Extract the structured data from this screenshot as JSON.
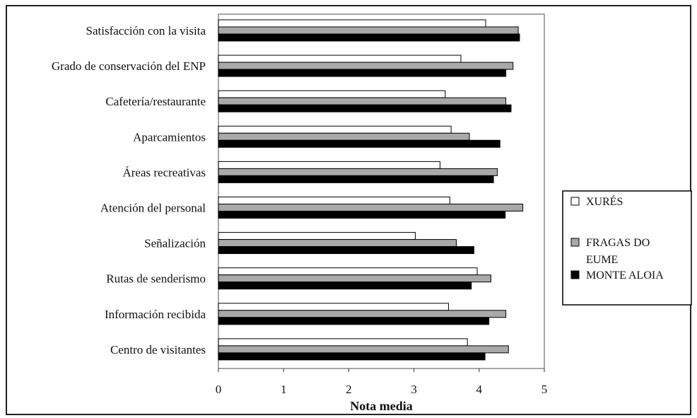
{
  "chart_data": {
    "type": "bar",
    "orientation": "horizontal",
    "categories": [
      "Satisfacción con la visita",
      "Grado de conservación del ENP",
      "Cafetería/restaurante",
      "Aparcamientos",
      "Áreas recreativas",
      "Atención del personal",
      "Señalización",
      "Rutas de senderismo",
      "Información recibida",
      "Centro de visitantes"
    ],
    "series": [
      {
        "name": "XURÉS",
        "color": "#ffffff",
        "values": [
          4.1,
          3.72,
          3.48,
          3.57,
          3.4,
          3.55,
          3.02,
          3.97,
          3.53,
          3.82
        ]
      },
      {
        "name": "FRAGAS DO EUME",
        "color": "#a9a9a9",
        "values": [
          4.6,
          4.52,
          4.41,
          3.85,
          4.28,
          4.67,
          3.65,
          4.18,
          4.41,
          4.45
        ]
      },
      {
        "name": "MONTE ALOIA",
        "color": "#000000",
        "values": [
          4.62,
          4.41,
          4.49,
          4.32,
          4.22,
          4.4,
          3.92,
          3.88,
          4.15,
          4.09
        ]
      }
    ],
    "xlabel": "Nota media",
    "xlim": [
      0,
      5
    ],
    "xticks": [
      "0",
      "1",
      "2",
      "3",
      "4",
      "5"
    ],
    "grid": false,
    "legend": {
      "placement": "right",
      "entries": [
        "XURÉS",
        "FRAGAS DO EUME",
        "MONTE ALOIA"
      ]
    }
  }
}
